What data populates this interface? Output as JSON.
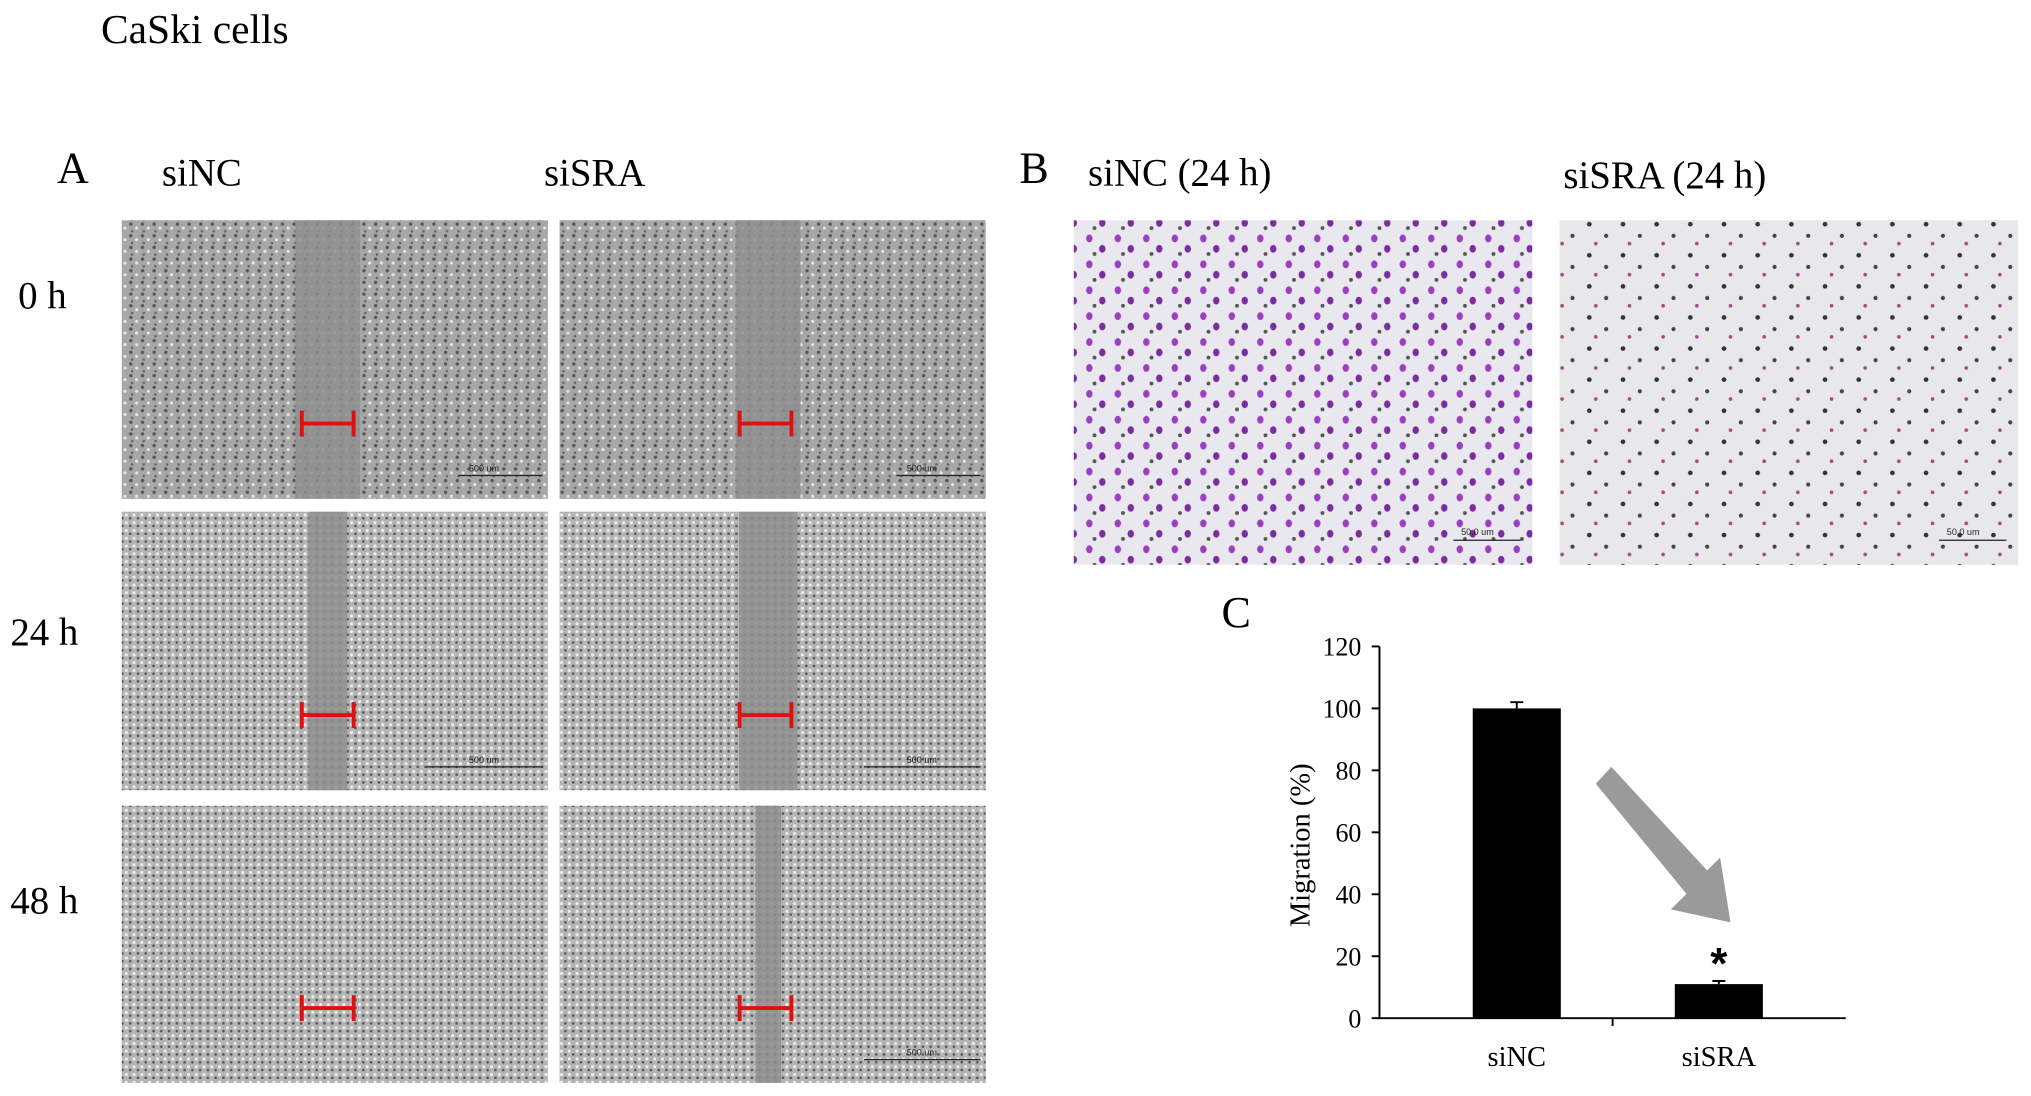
{
  "figure": {
    "title": "CaSki cells",
    "panel_a": {
      "label": "A",
      "columns": [
        "siNC",
        "siSRA"
      ],
      "rows": [
        "0 h",
        "24 h",
        "48 h"
      ],
      "scale_bar": "500 um"
    },
    "panel_b": {
      "label": "B",
      "columns": [
        "siNC (24 h)",
        "siSRA (24 h)"
      ],
      "scale_bar": "50.0 um"
    },
    "panel_c": {
      "label": "C"
    }
  },
  "chart_data": {
    "type": "bar",
    "categories": [
      "siNC",
      "siSRA"
    ],
    "values": [
      100,
      11
    ],
    "errors": [
      2,
      1
    ],
    "color": "#000000",
    "y_label": "Migration (%)",
    "ylim": [
      0,
      120
    ],
    "yticks": [
      0,
      20,
      40,
      60,
      80,
      100,
      120
    ],
    "annotations": [
      {
        "category": "siSRA",
        "text": "*"
      }
    ]
  }
}
